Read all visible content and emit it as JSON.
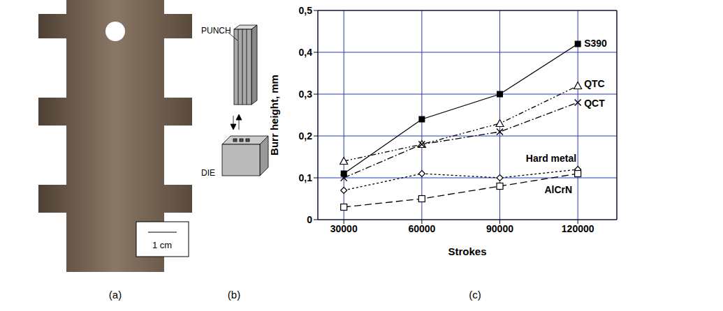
{
  "panels": {
    "a": {
      "label": "(a)",
      "scale_bar": "1 cm"
    },
    "b": {
      "label": "(b)",
      "punch": "PUNCH",
      "die": "DIE"
    },
    "c": {
      "label": "(c)"
    }
  },
  "chart_data": {
    "type": "line",
    "x": [
      30000,
      60000,
      90000,
      120000
    ],
    "xlim": [
      20000,
      135000
    ],
    "xticks": [
      30000,
      60000,
      90000,
      120000
    ],
    "ylim": [
      0,
      0.5
    ],
    "yticks": [
      0,
      {
        "value": 0.1,
        "label": "0,1"
      },
      {
        "value": 0.2,
        "label": "0,2"
      },
      {
        "value": 0.3,
        "label": "0,3"
      },
      {
        "value": 0.4,
        "label": "0,4"
      },
      {
        "value": 0.5,
        "label": "0,5"
      }
    ],
    "x_label": "Strokes",
    "y_label": "Burr height, mm",
    "grid": true,
    "series": [
      {
        "name": "S390",
        "color": "#000000",
        "marker": "filled_square",
        "line_style": "solid",
        "values": [
          0.11,
          0.24,
          0.3,
          0.42
        ]
      },
      {
        "name": "QTC",
        "color": "#000000",
        "marker": "open_triangle",
        "line_style": "dash-dot-dot",
        "values": [
          0.14,
          0.18,
          0.23,
          0.32
        ]
      },
      {
        "name": "QCT",
        "color": "#000000",
        "marker": "x",
        "line_style": "dash-dot",
        "values": [
          0.1,
          0.18,
          0.21,
          0.28
        ]
      },
      {
        "name": "Hard metal",
        "color": "#000000",
        "marker": "open_diamond",
        "line_style": "dotted",
        "values": [
          0.07,
          0.11,
          0.1,
          0.12
        ]
      },
      {
        "name": "AlCrN",
        "color": "#000000",
        "marker": "open_square",
        "line_style": "dashed",
        "values": [
          0.03,
          0.05,
          0.08,
          0.11
        ]
      }
    ]
  }
}
